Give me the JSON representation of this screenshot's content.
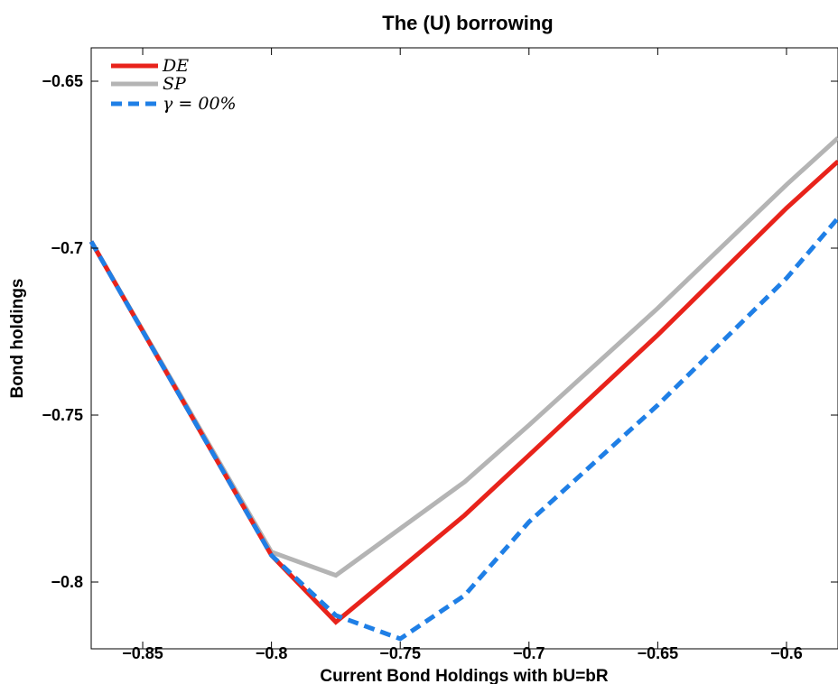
{
  "chart_data": {
    "type": "line",
    "title": "The (U) borrowing",
    "xlabel": "Current Bond Holdings with bU=bR",
    "ylabel": "Bond holdings",
    "xlim": [
      -0.87,
      -0.58
    ],
    "ylim": [
      -0.82,
      -0.64
    ],
    "xticks": [
      -0.85,
      -0.8,
      -0.75,
      -0.7,
      -0.65,
      -0.6
    ],
    "xtick_labels": [
      "−0.85",
      "−0.8",
      "−0.75",
      "−0.7",
      "−0.65",
      "−0.6"
    ],
    "yticks": [
      -0.65,
      -0.7,
      -0.75,
      -0.8
    ],
    "ytick_labels": [
      "−0.65",
      "−0.7",
      "−0.75",
      "−0.8"
    ],
    "grid": false,
    "legend_position": "top-left",
    "series": [
      {
        "name": "DE",
        "color": "#e8231b",
        "dash": "solid",
        "x": [
          -0.87,
          -0.8,
          -0.775,
          -0.75,
          -0.725,
          -0.7,
          -0.65,
          -0.6,
          -0.58
        ],
        "y": [
          -0.698,
          -0.792,
          -0.812,
          -0.796,
          -0.78,
          -0.762,
          -0.726,
          -0.688,
          -0.674
        ]
      },
      {
        "name": "SP",
        "color": "#b4b4b4",
        "dash": "solid",
        "x": [
          -0.87,
          -0.8,
          -0.775,
          -0.75,
          -0.725,
          -0.7,
          -0.65,
          -0.6,
          -0.58
        ],
        "y": [
          -0.698,
          -0.791,
          -0.798,
          -0.784,
          -0.77,
          -0.753,
          -0.718,
          -0.681,
          -0.667
        ]
      },
      {
        "name": "γ = 00%",
        "color": "#1f7fe6",
        "dash": "dashed",
        "x": [
          -0.87,
          -0.8,
          -0.775,
          -0.75,
          -0.725,
          -0.7,
          -0.65,
          -0.6,
          -0.58
        ],
        "y": [
          -0.698,
          -0.792,
          -0.81,
          -0.817,
          -0.804,
          -0.782,
          -0.747,
          -0.709,
          -0.691
        ]
      }
    ]
  }
}
